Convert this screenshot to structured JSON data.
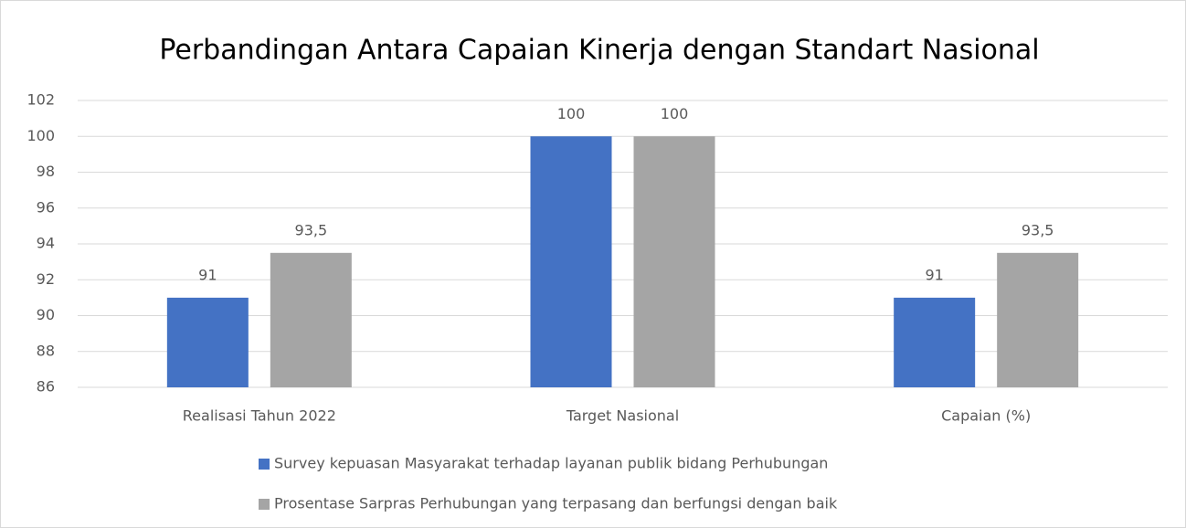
{
  "chart_data": {
    "type": "bar",
    "title": "Perbandingan Antara Capaian Kinerja dengan Standart Nasional",
    "categories": [
      "Realisasi Tahun 2022",
      "Target Nasional",
      "Capaian (%)"
    ],
    "series": [
      {
        "name": "Survey kepuasan Masyarakat terhadap layanan publik bidang Perhubungan",
        "color": "#4472c4",
        "values": [
          91,
          100,
          91
        ]
      },
      {
        "name": "Prosentase Sarpras Perhubungan yang terpasang dan berfungsi dengan baik",
        "color": "#a5a5a5",
        "values": [
          93.5,
          100,
          93.5
        ],
        "value_labels": [
          "93,5",
          "100",
          "93,5"
        ]
      }
    ],
    "ylim": [
      86,
      102
    ],
    "yticks": [
      86,
      88,
      90,
      92,
      94,
      96,
      98,
      100,
      102
    ],
    "grid": true,
    "legend": "bottom"
  }
}
